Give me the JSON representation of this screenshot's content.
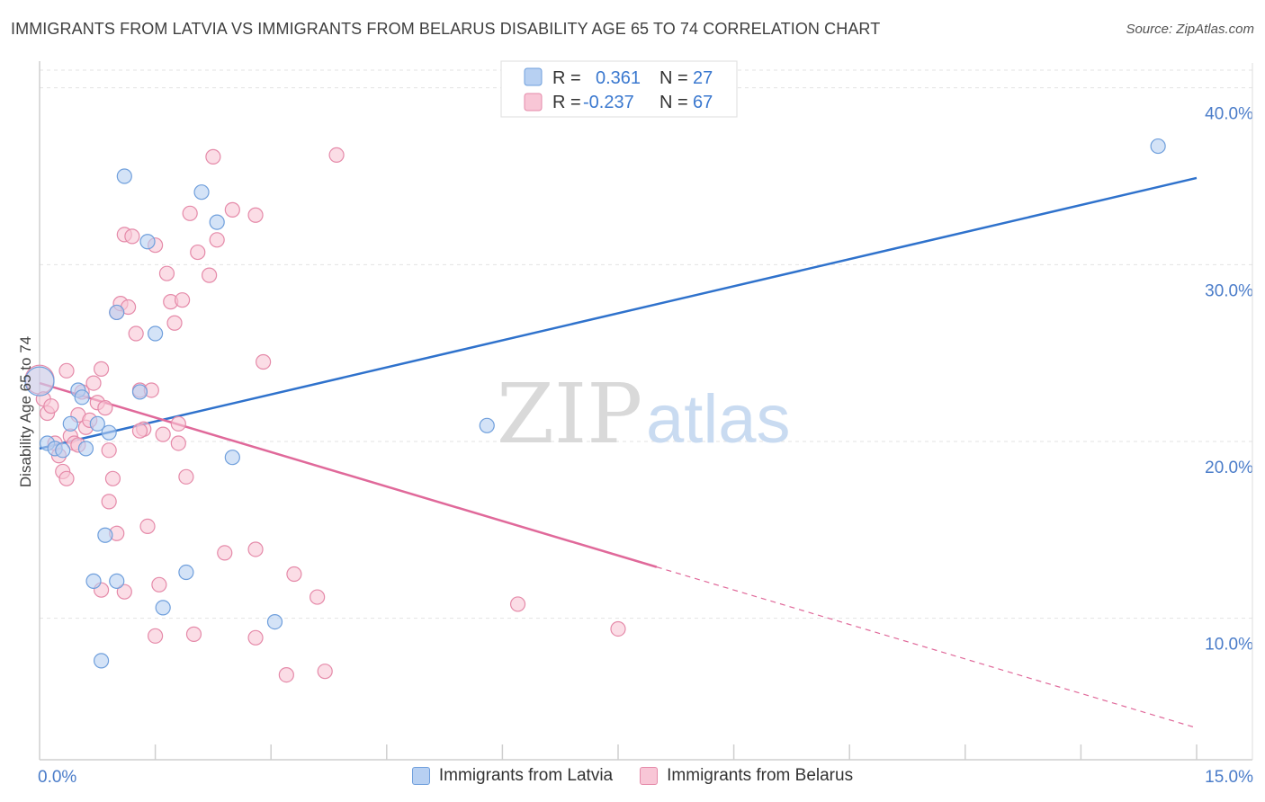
{
  "title": "IMMIGRANTS FROM LATVIA VS IMMIGRANTS FROM BELARUS DISABILITY AGE 65 TO 74 CORRELATION CHART",
  "source": "Source: ZipAtlas.com",
  "watermark": {
    "zip": "ZIP",
    "atlas": "atlas"
  },
  "colors": {
    "latvia_fill": "#b7d0f2",
    "latvia_stroke": "#6f9fdc",
    "latvia_line": "#2f72cc",
    "belarus_fill": "#f8c6d6",
    "belarus_stroke": "#e58aa9",
    "belarus_line": "#e0699a",
    "tick_text": "#4a7cc9",
    "grid": "#e3e3e3"
  },
  "legend": {
    "rows": [
      {
        "r_label": "R =",
        "r_value": "0.361",
        "n_label": "N =",
        "n_value": "27"
      },
      {
        "r_label": "R =",
        "r_value": "-0.237",
        "n_label": "N =",
        "n_value": "67"
      }
    ]
  },
  "bottom_legend": {
    "latvia": "Immigrants from Latvia",
    "belarus": "Immigrants from Belarus"
  },
  "chart_data": {
    "type": "scatter",
    "title": "IMMIGRANTS FROM LATVIA VS IMMIGRANTS FROM BELARUS DISABILITY AGE 65 TO 74 CORRELATION CHART",
    "xlabel": "",
    "ylabel": "Disability Age 65 to 74",
    "xlim": [
      0,
      15
    ],
    "ylim": [
      2,
      41
    ],
    "x_tick_labels": [
      {
        "value": 0,
        "label": "0.0%"
      },
      {
        "value": 15,
        "label": "15.0%"
      }
    ],
    "x_minor_ticks": [
      1.5,
      3,
      4.5,
      6,
      7.5,
      9,
      10.5,
      12,
      13.5
    ],
    "y_ticks": [
      {
        "value": 10,
        "label": "10.0%"
      },
      {
        "value": 20,
        "label": "20.0%"
      },
      {
        "value": 30,
        "label": "30.0%"
      },
      {
        "value": 40,
        "label": "40.0%"
      }
    ],
    "series": [
      {
        "name": "Immigrants from Latvia",
        "R": 0.361,
        "N": 27,
        "points": [
          [
            0.0,
            23.4
          ],
          [
            0.1,
            19.9
          ],
          [
            0.2,
            19.6
          ],
          [
            0.4,
            21.0
          ],
          [
            0.5,
            22.9
          ],
          [
            0.6,
            19.6
          ],
          [
            0.75,
            21.0
          ],
          [
            0.55,
            22.5
          ],
          [
            0.9,
            20.5
          ],
          [
            1.1,
            35.0
          ],
          [
            1.3,
            22.8
          ],
          [
            1.4,
            31.3
          ],
          [
            1.0,
            27.3
          ],
          [
            1.5,
            26.1
          ],
          [
            2.1,
            34.1
          ],
          [
            2.3,
            32.4
          ],
          [
            2.5,
            19.1
          ],
          [
            0.85,
            14.7
          ],
          [
            0.7,
            12.1
          ],
          [
            1.0,
            12.1
          ],
          [
            1.9,
            12.6
          ],
          [
            1.6,
            10.6
          ],
          [
            3.05,
            9.8
          ],
          [
            0.8,
            7.6
          ],
          [
            5.8,
            20.9
          ],
          [
            14.5,
            36.7
          ],
          [
            0.3,
            19.5
          ]
        ],
        "trend": {
          "x0": 0,
          "y0": 19.6,
          "x1": 15,
          "y1": 34.9
        }
      },
      {
        "name": "Immigrants from Belarus",
        "R": -0.237,
        "N": 67,
        "points": [
          [
            0.0,
            23.5
          ],
          [
            0.05,
            22.4
          ],
          [
            0.1,
            21.6
          ],
          [
            0.15,
            22.0
          ],
          [
            0.2,
            19.9
          ],
          [
            0.25,
            19.2
          ],
          [
            0.3,
            18.3
          ],
          [
            0.35,
            17.9
          ],
          [
            0.4,
            20.3
          ],
          [
            0.45,
            19.9
          ],
          [
            0.5,
            21.5
          ],
          [
            0.55,
            22.8
          ],
          [
            0.6,
            20.8
          ],
          [
            0.65,
            21.2
          ],
          [
            0.7,
            23.3
          ],
          [
            0.75,
            22.2
          ],
          [
            0.8,
            24.1
          ],
          [
            0.85,
            21.9
          ],
          [
            0.9,
            19.5
          ],
          [
            0.95,
            17.9
          ],
          [
            1.0,
            27.3
          ],
          [
            1.05,
            27.8
          ],
          [
            1.1,
            31.7
          ],
          [
            1.15,
            27.6
          ],
          [
            1.2,
            31.6
          ],
          [
            1.25,
            26.1
          ],
          [
            1.3,
            22.9
          ],
          [
            1.35,
            20.7
          ],
          [
            1.4,
            15.2
          ],
          [
            1.45,
            22.9
          ],
          [
            1.5,
            31.1
          ],
          [
            1.55,
            11.9
          ],
          [
            1.6,
            20.4
          ],
          [
            1.65,
            29.5
          ],
          [
            1.7,
            27.9
          ],
          [
            1.75,
            26.7
          ],
          [
            1.8,
            21.0
          ],
          [
            1.85,
            28.0
          ],
          [
            1.9,
            18.0
          ],
          [
            1.95,
            32.9
          ],
          [
            2.05,
            30.7
          ],
          [
            2.2,
            29.4
          ],
          [
            2.3,
            31.4
          ],
          [
            2.4,
            13.7
          ],
          [
            2.5,
            33.1
          ],
          [
            2.8,
            32.8
          ],
          [
            2.9,
            24.5
          ],
          [
            3.3,
            12.5
          ],
          [
            3.6,
            11.2
          ],
          [
            3.85,
            36.2
          ],
          [
            2.25,
            36.1
          ],
          [
            2.0,
            9.1
          ],
          [
            1.5,
            9.0
          ],
          [
            2.8,
            8.9
          ],
          [
            3.2,
            6.8
          ],
          [
            3.7,
            7.0
          ],
          [
            6.2,
            10.8
          ],
          [
            7.5,
            9.4
          ],
          [
            0.8,
            11.6
          ],
          [
            1.1,
            11.5
          ],
          [
            1.0,
            14.8
          ],
          [
            2.8,
            13.9
          ],
          [
            0.35,
            24.0
          ],
          [
            0.9,
            16.6
          ],
          [
            1.3,
            20.6
          ],
          [
            0.5,
            19.8
          ],
          [
            1.8,
            19.9
          ]
        ],
        "trend": {
          "x0": 0,
          "y0": 23.3,
          "x1": 8.0,
          "y1": 12.9,
          "dash_x1": 15,
          "dash_y1": 3.8
        }
      }
    ]
  }
}
